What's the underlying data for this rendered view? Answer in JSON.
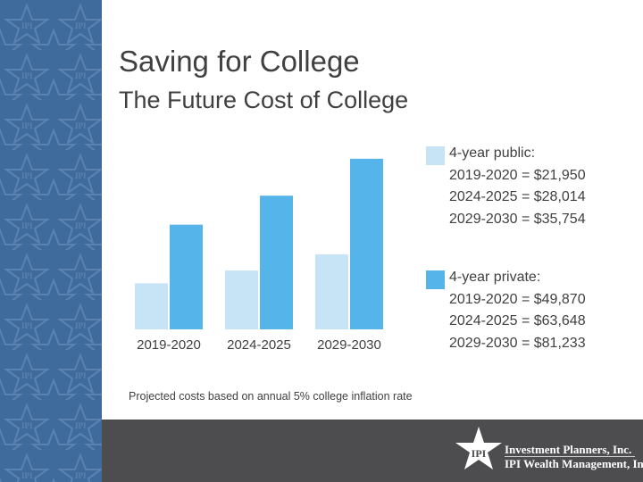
{
  "slide": {
    "title": "Saving for College",
    "subtitle": "The Future Cost of College"
  },
  "legend": {
    "public": {
      "heading": "4-year public:",
      "lines": [
        "2019-2020 = $21,950",
        "2024-2025 = $28,014",
        "2029-2030 = $35,754"
      ]
    },
    "private": {
      "heading": "4-year private:",
      "lines": [
        "2019-2020 = $49,870",
        "2024-2025 = $63,648",
        "2029-2030 = $81,233"
      ]
    }
  },
  "footnote": "Projected costs based on annual 5% college inflation rate",
  "logo": {
    "mark": "IPI",
    "line1": "Investment Planners, Inc.",
    "line2": "IPI Wealth Management, Inc."
  },
  "colors": {
    "public": "#c7e4f6",
    "private": "#55b4e9",
    "sidebar": "#3f6a9c",
    "footer": "#4d4d4f",
    "text": "#404040"
  },
  "chart_data": {
    "type": "bar",
    "categories": [
      "2019-2020",
      "2024-2025",
      "2029-2030"
    ],
    "series": [
      {
        "name": "4-year public",
        "values": [
          21950,
          28014,
          35754
        ]
      },
      {
        "name": "4-year private",
        "values": [
          49870,
          63648,
          81233
        ]
      }
    ],
    "title": "",
    "xlabel": "",
    "ylabel": "",
    "ylim": [
      0,
      85000
    ],
    "grid": false,
    "legend_position": "right"
  }
}
